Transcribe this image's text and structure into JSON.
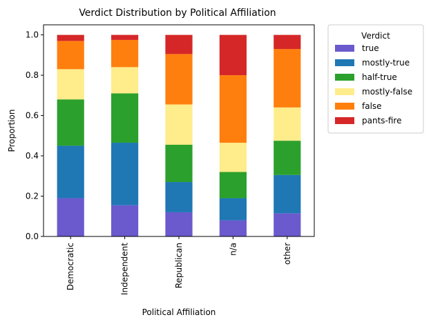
{
  "chart_data": {
    "type": "bar",
    "stacked": true,
    "title": "Verdict Distribution by Political Affiliation",
    "xlabel": "Political Affiliation",
    "ylabel": "Proportion",
    "ylim": [
      0,
      1.05
    ],
    "yticks": [
      0.0,
      0.2,
      0.4,
      0.6,
      0.8,
      1.0
    ],
    "ytick_labels": [
      "0.0",
      "0.2",
      "0.4",
      "0.6",
      "0.8",
      "1.0"
    ],
    "grid": false,
    "legend_title": "Verdict",
    "legend_position": "outside-top-right",
    "categories": [
      "Democratic",
      "Independent",
      "Republican",
      "n/a",
      "other"
    ],
    "series": [
      {
        "name": "true",
        "color": "#6a5acd",
        "values": [
          0.19,
          0.155,
          0.12,
          0.08,
          0.115
        ]
      },
      {
        "name": "mostly-true",
        "color": "#1f77b4",
        "values": [
          0.26,
          0.31,
          0.15,
          0.11,
          0.19
        ]
      },
      {
        "name": "half-true",
        "color": "#2ca02c",
        "values": [
          0.23,
          0.245,
          0.185,
          0.13,
          0.17
        ]
      },
      {
        "name": "mostly-false",
        "color": "#ffec8b",
        "values": [
          0.15,
          0.13,
          0.2,
          0.145,
          0.165
        ]
      },
      {
        "name": "false",
        "color": "#ff7f0e",
        "values": [
          0.14,
          0.135,
          0.25,
          0.335,
          0.29
        ]
      },
      {
        "name": "pants-fire",
        "color": "#d62728",
        "values": [
          0.03,
          0.025,
          0.095,
          0.2,
          0.07
        ]
      }
    ]
  }
}
